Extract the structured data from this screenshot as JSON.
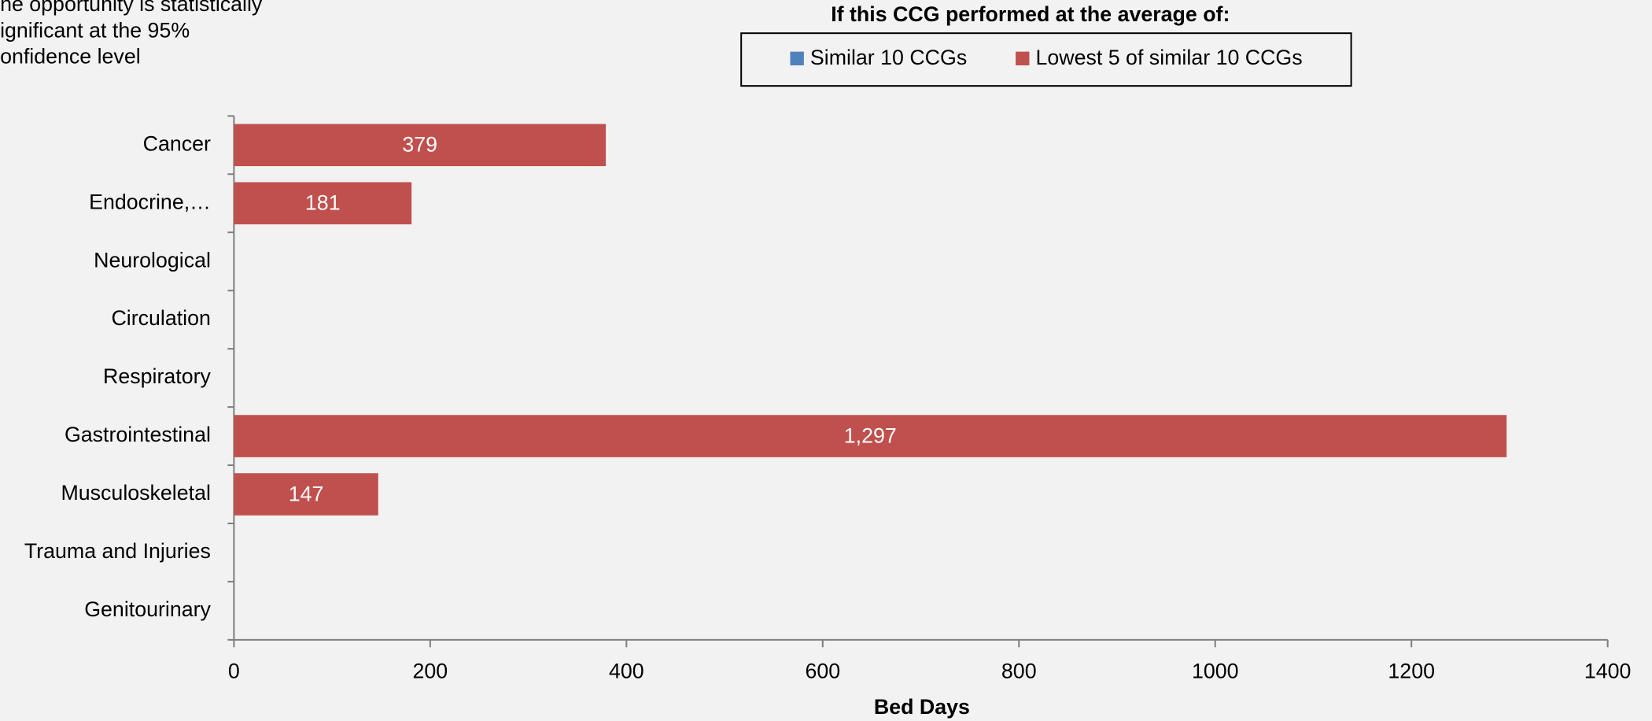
{
  "chart_data": {
    "type": "hbar",
    "annotation": [
      "he opportunity is statistically",
      "ignificant at the 95%",
      "onfidence level"
    ],
    "legend_title": "If this CCG performed at the average of:",
    "categories": [
      "Cancer",
      "Endocrine,…",
      "Neurological",
      "Circulation",
      "Respiratory",
      "Gastrointestinal",
      "Musculoskeletal",
      "Trauma and Injuries",
      "Genitourinary"
    ],
    "series": [
      {
        "name": "Similar 10 CCGs",
        "color": "#4f81bd",
        "values": [
          null,
          null,
          null,
          null,
          null,
          null,
          null,
          null,
          null
        ]
      },
      {
        "name": "Lowest 5 of similar 10 CCGs",
        "color": "#c0504d",
        "values": [
          379,
          181,
          null,
          null,
          null,
          1297,
          147,
          null,
          null
        ],
        "value_labels": [
          "379",
          "181",
          null,
          null,
          null,
          "1,297",
          "147",
          null,
          null
        ]
      }
    ],
    "xlim": [
      0,
      1400
    ],
    "xticks": [
      0,
      200,
      400,
      600,
      800,
      1000,
      1200,
      1400
    ],
    "xlabel": "Bed Days",
    "legend": "top"
  }
}
